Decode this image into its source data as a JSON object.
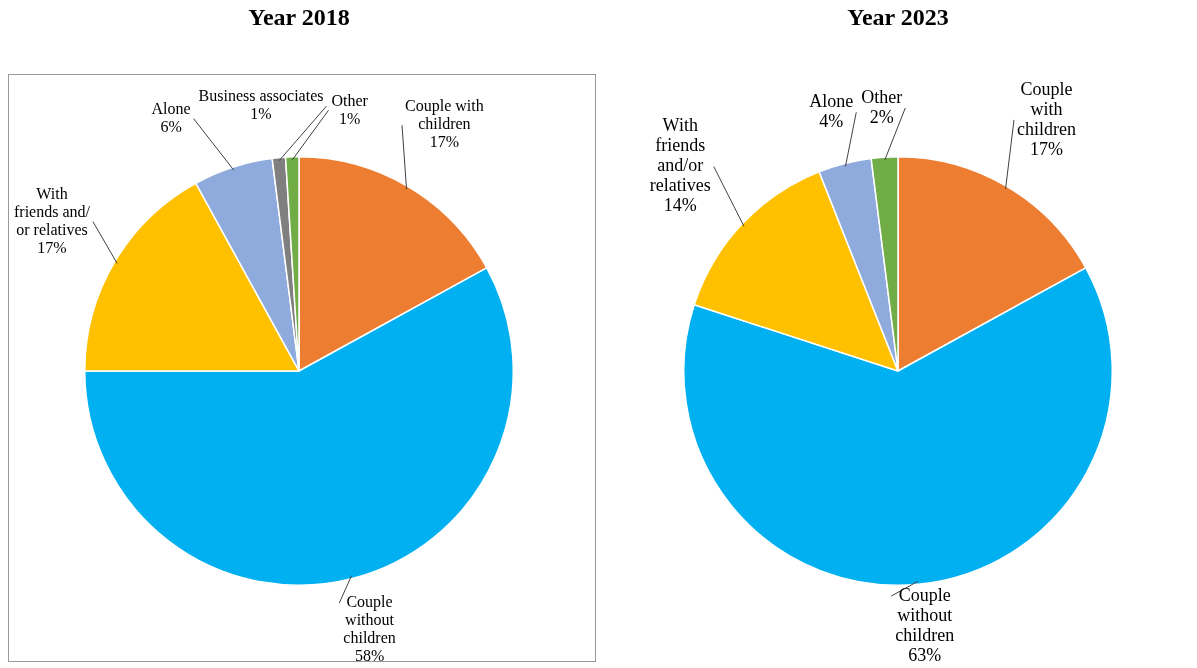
{
  "chart_data": [
    {
      "type": "pie",
      "title": "Year 2018",
      "categories": [
        "Couple with\nchildren",
        "Couple\nwithout\nchildren",
        "With\nfriends and/\nor relatives",
        "Alone",
        "Business associates",
        "Other"
      ],
      "values": [
        17,
        58,
        17,
        6,
        1,
        1
      ],
      "colors": [
        "#ed7d31",
        "#00b0f0",
        "#ffc000",
        "#8faadc",
        "#7f7f7f",
        "#70ad47"
      ],
      "value_labels": [
        "17%",
        "58%",
        "17%",
        "6%",
        "1%",
        "1%"
      ]
    },
    {
      "type": "pie",
      "title": "Year 2023",
      "categories": [
        "Couple\nwith\nchildren",
        "Couple\nwithout\nchildren",
        "With\nfriends\nand/or\nrelatives",
        "Alone",
        "Other"
      ],
      "values": [
        17,
        63,
        14,
        4,
        2
      ],
      "colors": [
        "#ed7d31",
        "#00b0f0",
        "#ffc000",
        "#8faadc",
        "#70ad47"
      ],
      "value_labels": [
        "17%",
        "63%",
        "14%",
        "4%",
        "2%"
      ]
    }
  ]
}
